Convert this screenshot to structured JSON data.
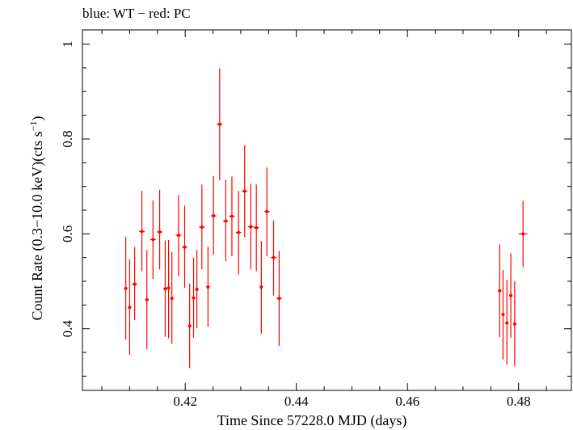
{
  "chart_data": {
    "type": "scatter",
    "title": "blue: WT − red: PC",
    "xlabel": "Time Since 57228.0 MJD (days)",
    "ylabel_main": "Count Rate (0.3−10.0 keV)(cts s",
    "ylabel_exp": "−1",
    "ylabel_close": ")",
    "xlim": [
      0.4015,
      0.4895
    ],
    "ylim": [
      0.27,
      1.03
    ],
    "xticks": [
      0.42,
      0.44,
      0.46,
      0.48
    ],
    "xtick_labels": [
      "0.42",
      "0.44",
      "0.46",
      "0.48"
    ],
    "yticks": [
      0.4,
      0.6,
      0.8,
      1.0
    ],
    "ytick_labels": [
      "0.4",
      "0.6",
      "0.8",
      "1"
    ],
    "grid": false,
    "series": [
      {
        "color": "#ff0000",
        "points": [
          {
            "x": 0.4093,
            "y": 0.485,
            "xerr": 0.0003,
            "ylo": 0.377,
            "yhi": 0.594
          },
          {
            "x": 0.41,
            "y": 0.445,
            "xerr": 0.0003,
            "ylo": 0.345,
            "yhi": 0.546
          },
          {
            "x": 0.4109,
            "y": 0.494,
            "xerr": 0.0005,
            "ylo": 0.418,
            "yhi": 0.572
          },
          {
            "x": 0.4122,
            "y": 0.605,
            "xerr": 0.0005,
            "ylo": 0.521,
            "yhi": 0.691
          },
          {
            "x": 0.4131,
            "y": 0.461,
            "xerr": 0.0003,
            "ylo": 0.357,
            "yhi": 0.566
          },
          {
            "x": 0.4142,
            "y": 0.588,
            "xerr": 0.0005,
            "ylo": 0.505,
            "yhi": 0.671
          },
          {
            "x": 0.4154,
            "y": 0.604,
            "xerr": 0.0005,
            "ylo": 0.525,
            "yhi": 0.693
          },
          {
            "x": 0.4164,
            "y": 0.484,
            "xerr": 0.0003,
            "ylo": 0.383,
            "yhi": 0.586
          },
          {
            "x": 0.417,
            "y": 0.486,
            "xerr": 0.0003,
            "ylo": 0.38,
            "yhi": 0.587
          },
          {
            "x": 0.4176,
            "y": 0.464,
            "xerr": 0.0003,
            "ylo": 0.368,
            "yhi": 0.562
          },
          {
            "x": 0.4188,
            "y": 0.597,
            "xerr": 0.0005,
            "ylo": 0.511,
            "yhi": 0.682
          },
          {
            "x": 0.4199,
            "y": 0.572,
            "xerr": 0.0005,
            "ylo": 0.486,
            "yhi": 0.66
          },
          {
            "x": 0.4208,
            "y": 0.406,
            "xerr": 0.0003,
            "ylo": 0.317,
            "yhi": 0.495
          },
          {
            "x": 0.4215,
            "y": 0.465,
            "xerr": 0.0003,
            "ylo": 0.381,
            "yhi": 0.55
          },
          {
            "x": 0.4221,
            "y": 0.483,
            "xerr": 0.0003,
            "ylo": 0.401,
            "yhi": 0.566
          },
          {
            "x": 0.423,
            "y": 0.614,
            "xerr": 0.0005,
            "ylo": 0.525,
            "yhi": 0.704
          },
          {
            "x": 0.4241,
            "y": 0.488,
            "xerr": 0.0003,
            "ylo": 0.404,
            "yhi": 0.573
          },
          {
            "x": 0.4251,
            "y": 0.638,
            "xerr": 0.0005,
            "ylo": 0.556,
            "yhi": 0.722
          },
          {
            "x": 0.4262,
            "y": 0.831,
            "xerr": 0.0005,
            "ylo": 0.713,
            "yhi": 0.949
          },
          {
            "x": 0.4273,
            "y": 0.627,
            "xerr": 0.0005,
            "ylo": 0.542,
            "yhi": 0.714
          },
          {
            "x": 0.4284,
            "y": 0.637,
            "xerr": 0.0005,
            "ylo": 0.553,
            "yhi": 0.721
          },
          {
            "x": 0.4296,
            "y": 0.603,
            "xerr": 0.0005,
            "ylo": 0.514,
            "yhi": 0.691
          },
          {
            "x": 0.4307,
            "y": 0.69,
            "xerr": 0.0005,
            "ylo": 0.593,
            "yhi": 0.787
          },
          {
            "x": 0.4318,
            "y": 0.615,
            "xerr": 0.0005,
            "ylo": 0.525,
            "yhi": 0.706
          },
          {
            "x": 0.4328,
            "y": 0.613,
            "xerr": 0.0005,
            "ylo": 0.521,
            "yhi": 0.704
          },
          {
            "x": 0.4337,
            "y": 0.488,
            "xerr": 0.0003,
            "ylo": 0.39,
            "yhi": 0.585
          },
          {
            "x": 0.4347,
            "y": 0.647,
            "xerr": 0.0005,
            "ylo": 0.553,
            "yhi": 0.74
          },
          {
            "x": 0.4359,
            "y": 0.55,
            "xerr": 0.0005,
            "ylo": 0.47,
            "yhi": 0.628
          },
          {
            "x": 0.4369,
            "y": 0.464,
            "xerr": 0.0005,
            "ylo": 0.364,
            "yhi": 0.564
          },
          {
            "x": 0.4766,
            "y": 0.48,
            "xerr": 0.0003,
            "ylo": 0.382,
            "yhi": 0.578
          },
          {
            "x": 0.4772,
            "y": 0.43,
            "xerr": 0.0003,
            "ylo": 0.335,
            "yhi": 0.524
          },
          {
            "x": 0.4779,
            "y": 0.412,
            "xerr": 0.0003,
            "ylo": 0.324,
            "yhi": 0.503
          },
          {
            "x": 0.4786,
            "y": 0.47,
            "xerr": 0.0003,
            "ylo": 0.381,
            "yhi": 0.559
          },
          {
            "x": 0.4793,
            "y": 0.41,
            "xerr": 0.0003,
            "ylo": 0.321,
            "yhi": 0.5
          },
          {
            "x": 0.4808,
            "y": 0.6,
            "xerr": 0.0008,
            "ylo": 0.53,
            "yhi": 0.67
          }
        ]
      }
    ]
  }
}
